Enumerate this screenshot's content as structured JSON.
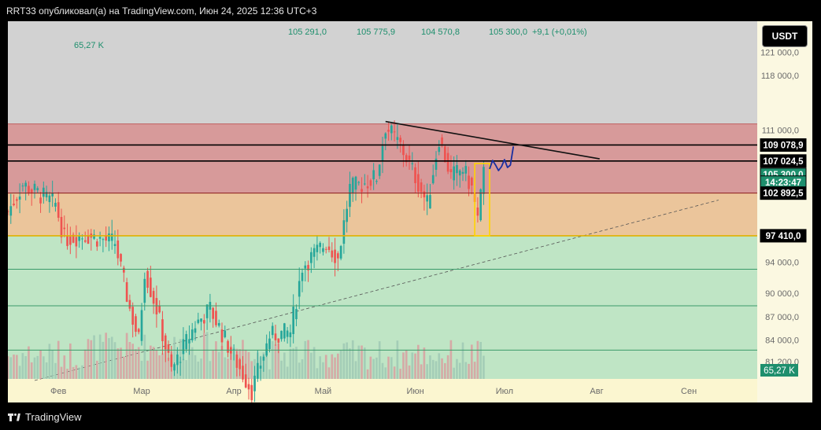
{
  "header": {
    "text": "RRT33 опубликовал(а) на TradingView.com, Июн 24, 2025 12:36 UTC+3"
  },
  "footer": {
    "brand": "TradingView"
  },
  "toolbar": {
    "currency": "USDT"
  },
  "ohlc": {
    "open": "105 291,0",
    "high": "105 775,9",
    "low": "104 570,8",
    "close": "105 300,0",
    "change": "+9,1 (+0,01%)"
  },
  "volume_label": "65,27 K",
  "price_scale": {
    "ticks": [
      "121 000,0",
      "118 000,0",
      "111 000,0",
      "94 000,0",
      "90 000,0",
      "87 000,0",
      "84 000,0",
      "81 200,0"
    ],
    "ticks_values": [
      121000,
      118000,
      111000,
      94000,
      90000,
      87000,
      84000,
      81200
    ],
    "labels": [
      {
        "text": "109 078,9",
        "value": 109078.9,
        "style": "black"
      },
      {
        "text": "107 024,5",
        "value": 107024.5,
        "style": "black"
      },
      {
        "text": "105 300,0",
        "value": 105300,
        "style": "green"
      },
      {
        "text": "14:23:47",
        "value": 104300,
        "style": "green"
      },
      {
        "text": "102 892,5",
        "value": 102892.5,
        "style": "black"
      },
      {
        "text": "97 410,0",
        "value": 97410,
        "style": "black"
      }
    ],
    "volume_badge": "65,27 K"
  },
  "chart_data": {
    "type": "candlestick",
    "time_axis": [
      "Фев",
      "Мар",
      "Апр",
      "Май",
      "Июн",
      "Июл",
      "Авг",
      "Сен"
    ],
    "y_range": [
      79000,
      125000
    ],
    "last_price": 105300,
    "horizontal_levels": [
      {
        "value": 109078.9,
        "color": "#000000"
      },
      {
        "value": 107024.5,
        "color": "#000000"
      },
      {
        "value": 102892.5,
        "color": "#8b1a1a"
      },
      {
        "value": 97410,
        "color": "#e0b000"
      },
      {
        "value": 111800,
        "color": "#c06060"
      },
      {
        "value": 93100,
        "color": "#3b9a6a"
      },
      {
        "value": 88400,
        "color": "#3b9a6a"
      },
      {
        "value": 82700,
        "color": "#3b9a6a"
      }
    ],
    "zones": [
      {
        "from": 111800,
        "to": 102892.5,
        "color": "#d79a9a"
      },
      {
        "from": 102892.5,
        "to": 97410,
        "color": "#ebc59b"
      },
      {
        "from": 97410,
        "to": 79000,
        "color": "#bfe5c5"
      }
    ],
    "trendlines": [
      {
        "from": {
          "t": "2025-05-22",
          "y": 112100
        },
        "to": {
          "t": "2025-08-02",
          "y": 107300
        },
        "color": "#111111",
        "style": "solid"
      },
      {
        "from": {
          "t": "2025-01-24",
          "y": 78800
        },
        "to": {
          "t": "2025-09-11",
          "y": 102000
        },
        "color": "#555555",
        "style": "dashed"
      }
    ],
    "projection": [
      {
        "t": "2025-06-26",
        "y": 106000
      },
      {
        "t": "2025-06-27",
        "y": 107100
      },
      {
        "t": "2025-06-28",
        "y": 106500
      },
      {
        "t": "2025-06-29",
        "y": 105800
      },
      {
        "t": "2025-06-30",
        "y": 106300
      },
      {
        "t": "2025-07-01",
        "y": 107200
      },
      {
        "t": "2025-07-02",
        "y": 106200
      },
      {
        "t": "2025-07-03",
        "y": 106500
      },
      {
        "t": "2025-07-04",
        "y": 108900
      }
    ],
    "highlight_box": {
      "from": "2025-06-21",
      "to": "2025-06-26",
      "high": 106700,
      "low": 97400,
      "color": "#ffd400"
    }
  },
  "colors": {
    "up": "#26a69a",
    "down": "#ef5350",
    "vol_up": "#9fc9b4",
    "vol_down": "#d8a0a0"
  }
}
